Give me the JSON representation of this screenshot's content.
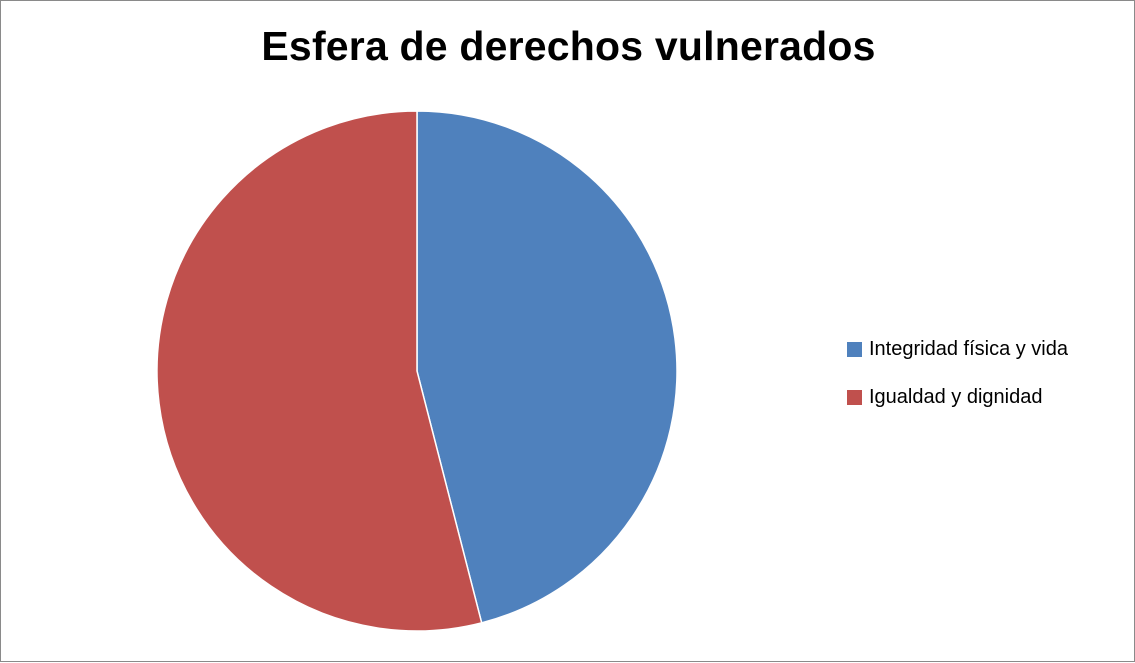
{
  "chart_data": {
    "type": "pie",
    "title": "Esfera de derechos vulnerados",
    "slices": [
      {
        "label": "Integridad física y vida",
        "value": 46,
        "color": "#4F81BD"
      },
      {
        "label": "Igualdad y dignidad",
        "value": 54,
        "color": "#C0504D"
      }
    ],
    "start": "12 o'clock, clockwise",
    "legend_position": "right"
  }
}
